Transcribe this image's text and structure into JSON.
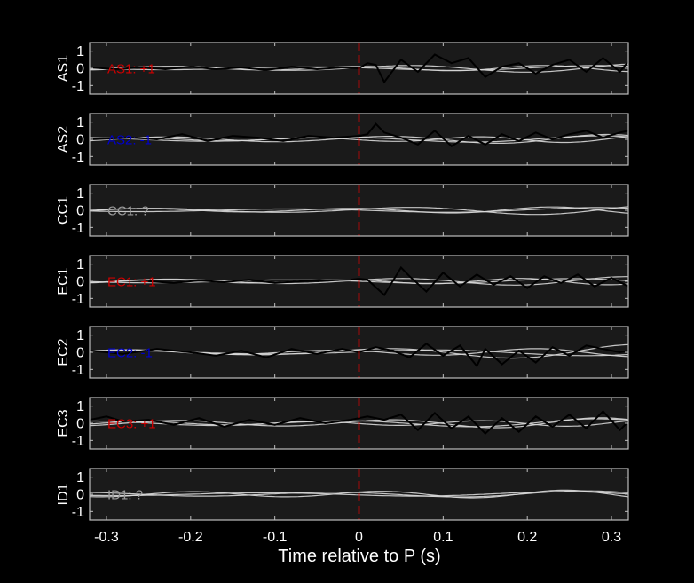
{
  "colors": {
    "background": "#000000",
    "axes_face": "#1a1a1a",
    "axes_frame": "#bfbfbf",
    "text": "#ffffff",
    "trace_black": "#000000",
    "trace_gray": "#d9d9d9",
    "marker_red": "#ff0000",
    "pos_label": "#cc0000",
    "neg_label": "#0000cc",
    "unknown_label": "#9a9a9a"
  },
  "chart_data": {
    "type": "line",
    "xlabel": "Time relative to P (s)",
    "xlim": [
      -0.32,
      0.32
    ],
    "ylim": [
      -1.5,
      1.5
    ],
    "xticks": [
      -0.3,
      -0.2,
      -0.1,
      0,
      0.1,
      0.2,
      0.3
    ],
    "xtick_labels": [
      "-0.3",
      "-0.2",
      "-0.1",
      "0",
      "0.1",
      "0.2",
      "0.3"
    ],
    "yticks": [
      1,
      0,
      -1
    ],
    "ytick_labels": [
      "1",
      "0",
      "-1"
    ],
    "marker_x": 0,
    "panels": [
      {
        "station": "AS1",
        "annotation": "AS1: +1",
        "polarity": "pos",
        "black_trace": {
          "x": [
            -0.32,
            -0.29,
            -0.26,
            -0.23,
            -0.2,
            -0.17,
            -0.14,
            -0.11,
            -0.08,
            -0.05,
            -0.02,
            0.0,
            0.01,
            0.02,
            0.03,
            0.05,
            0.07,
            0.09,
            0.11,
            0.13,
            0.15,
            0.17,
            0.19,
            0.21,
            0.23,
            0.25,
            0.27,
            0.29,
            0.31,
            0.32
          ],
          "y": [
            0.05,
            -0.05,
            0.05,
            -0.05,
            0.1,
            -0.05,
            0.05,
            -0.1,
            0.1,
            -0.05,
            0.05,
            0.0,
            0.3,
            0.2,
            -0.8,
            0.5,
            -0.2,
            0.8,
            0.3,
            0.6,
            -0.5,
            0.1,
            0.3,
            -0.3,
            0.2,
            0.5,
            -0.2,
            0.6,
            -0.2,
            0.4
          ]
        },
        "gray_traces": [
          {
            "amplitude": 0.12,
            "period": 0.28,
            "phase": 0.3,
            "growth": 0.35
          },
          {
            "amplitude": 0.1,
            "period": 0.22,
            "phase": 1.6,
            "growth": 0.25
          },
          {
            "amplitude": 0.08,
            "period": 0.34,
            "phase": 2.7,
            "growth": 0.3
          }
        ]
      },
      {
        "station": "AS2",
        "annotation": "AS2: -1",
        "polarity": "neg",
        "black_trace": {
          "x": [
            -0.32,
            -0.27,
            -0.24,
            -0.21,
            -0.18,
            -0.15,
            -0.12,
            -0.09,
            -0.06,
            -0.03,
            0.0,
            0.01,
            0.02,
            0.03,
            0.05,
            0.07,
            0.09,
            0.11,
            0.13,
            0.15,
            0.17,
            0.19,
            0.21,
            0.23,
            0.25,
            0.27,
            0.29,
            0.31,
            0.32
          ],
          "y": [
            0.0,
            0.1,
            0.0,
            0.3,
            -0.1,
            0.2,
            0.1,
            -0.1,
            0.2,
            0.1,
            0.2,
            0.3,
            0.9,
            0.4,
            0.1,
            -0.3,
            0.5,
            -0.4,
            0.2,
            -0.3,
            0.3,
            -0.1,
            0.4,
            0.0,
            0.3,
            0.5,
            0.1,
            0.4,
            0.5
          ]
        },
        "gray_traces": [
          {
            "amplitude": 0.14,
            "period": 0.26,
            "phase": 0.8,
            "growth": 0.3
          },
          {
            "amplitude": 0.11,
            "period": 0.31,
            "phase": 2.1,
            "growth": 0.25
          },
          {
            "amplitude": 0.09,
            "period": 0.2,
            "phase": 3.4,
            "growth": 0.35
          }
        ]
      },
      {
        "station": "CC1",
        "annotation": "CC1: ?",
        "polarity": "unknown",
        "black_trace": {
          "x": [],
          "y": []
        },
        "gray_traces": [
          {
            "amplitude": 0.12,
            "period": 0.3,
            "phase": 0.4,
            "growth": 0.4
          },
          {
            "amplitude": 0.1,
            "period": 0.24,
            "phase": 1.9,
            "growth": 0.35
          },
          {
            "amplitude": 0.08,
            "period": 0.36,
            "phase": 3.0,
            "growth": 0.3
          }
        ]
      },
      {
        "station": "EC1",
        "annotation": "EC1: +1",
        "polarity": "pos",
        "black_trace": {
          "x": [
            -0.25,
            -0.22,
            -0.19,
            -0.16,
            -0.13,
            -0.1,
            -0.07,
            -0.04,
            -0.01,
            0.0,
            0.01,
            0.03,
            0.05,
            0.06,
            0.08,
            0.1,
            0.12,
            0.14,
            0.16,
            0.18,
            0.2,
            0.22,
            0.24,
            0.26,
            0.28,
            0.3,
            0.32
          ],
          "y": [
            0.0,
            -0.1,
            0.05,
            -0.05,
            0.1,
            -0.1,
            0.0,
            0.05,
            0.1,
            0.15,
            0.1,
            -0.8,
            0.8,
            0.3,
            -0.6,
            0.5,
            -0.3,
            0.4,
            -0.2,
            0.3,
            -0.4,
            0.3,
            -0.1,
            0.4,
            -0.3,
            0.2,
            -0.3
          ]
        },
        "gray_traces": [
          {
            "amplitude": 0.13,
            "period": 0.27,
            "phase": 0.5,
            "growth": 0.3
          },
          {
            "amplitude": 0.1,
            "period": 0.21,
            "phase": 2.2,
            "growth": 0.3
          },
          {
            "amplitude": 0.09,
            "period": 0.33,
            "phase": 3.1,
            "growth": 0.25
          }
        ]
      },
      {
        "station": "EC2",
        "annotation": "EC2: -1",
        "polarity": "neg",
        "black_trace": {
          "x": [
            -0.32,
            -0.28,
            -0.24,
            -0.2,
            -0.17,
            -0.14,
            -0.11,
            -0.08,
            -0.05,
            -0.02,
            0.0,
            0.02,
            0.04,
            0.06,
            0.08,
            0.1,
            0.12,
            0.14,
            0.15,
            0.17,
            0.19,
            0.21,
            0.23,
            0.25,
            0.27,
            0.29,
            0.31,
            0.32
          ],
          "y": [
            0.1,
            -0.1,
            0.2,
            0.0,
            -0.2,
            0.1,
            -0.3,
            0.2,
            -0.1,
            0.2,
            0.0,
            0.3,
            0.1,
            -0.3,
            0.5,
            -0.2,
            0.4,
            -0.8,
            0.2,
            -0.7,
            0.1,
            -0.6,
            0.3,
            -0.2,
            0.4,
            0.2,
            0.0,
            0.1
          ]
        },
        "gray_traces": [
          {
            "amplitude": 0.15,
            "period": 0.3,
            "phase": 1.0,
            "growth": 0.55
          },
          {
            "amplitude": 0.12,
            "period": 0.24,
            "phase": 2.4,
            "growth": 0.3
          },
          {
            "amplitude": 0.1,
            "period": 0.37,
            "phase": 0.2,
            "growth": 0.3
          }
        ]
      },
      {
        "station": "EC3",
        "annotation": "EC3: +1",
        "polarity": "pos",
        "black_trace": {
          "x": [
            -0.32,
            -0.3,
            -0.28,
            -0.25,
            -0.22,
            -0.19,
            -0.16,
            -0.13,
            -0.1,
            -0.07,
            -0.04,
            -0.01,
            0.0,
            0.01,
            0.03,
            0.05,
            0.07,
            0.09,
            0.11,
            0.13,
            0.15,
            0.17,
            0.19,
            0.21,
            0.23,
            0.25,
            0.27,
            0.29,
            0.31,
            0.32
          ],
          "y": [
            0.2,
            0.4,
            0.1,
            0.2,
            -0.1,
            0.3,
            -0.2,
            0.2,
            -0.1,
            0.3,
            0.0,
            0.2,
            0.3,
            0.4,
            0.2,
            0.5,
            -0.4,
            0.6,
            -0.3,
            0.4,
            -0.6,
            0.3,
            -0.5,
            0.4,
            -0.2,
            0.5,
            -0.3,
            0.7,
            -0.4,
            0.1
          ]
        },
        "gray_traces": [
          {
            "amplitude": 0.16,
            "period": 0.25,
            "phase": 0.7,
            "growth": 0.3
          },
          {
            "amplitude": 0.13,
            "period": 0.3,
            "phase": 2.0,
            "growth": 0.3
          },
          {
            "amplitude": 0.1,
            "period": 0.2,
            "phase": 3.3,
            "growth": 0.25
          }
        ]
      },
      {
        "station": "ID1",
        "annotation": "ID1: ?",
        "polarity": "unknown",
        "black_trace": {
          "x": [],
          "y": []
        },
        "gray_traces": [
          {
            "amplitude": 0.15,
            "period": 0.22,
            "phase": 0.9,
            "growth": 0.2
          },
          {
            "amplitude": 0.11,
            "period": 0.3,
            "phase": 2.3,
            "growth": 0.25
          },
          {
            "amplitude": 0.08,
            "period": 0.35,
            "phase": 3.6,
            "growth": 0.3
          }
        ]
      }
    ]
  }
}
